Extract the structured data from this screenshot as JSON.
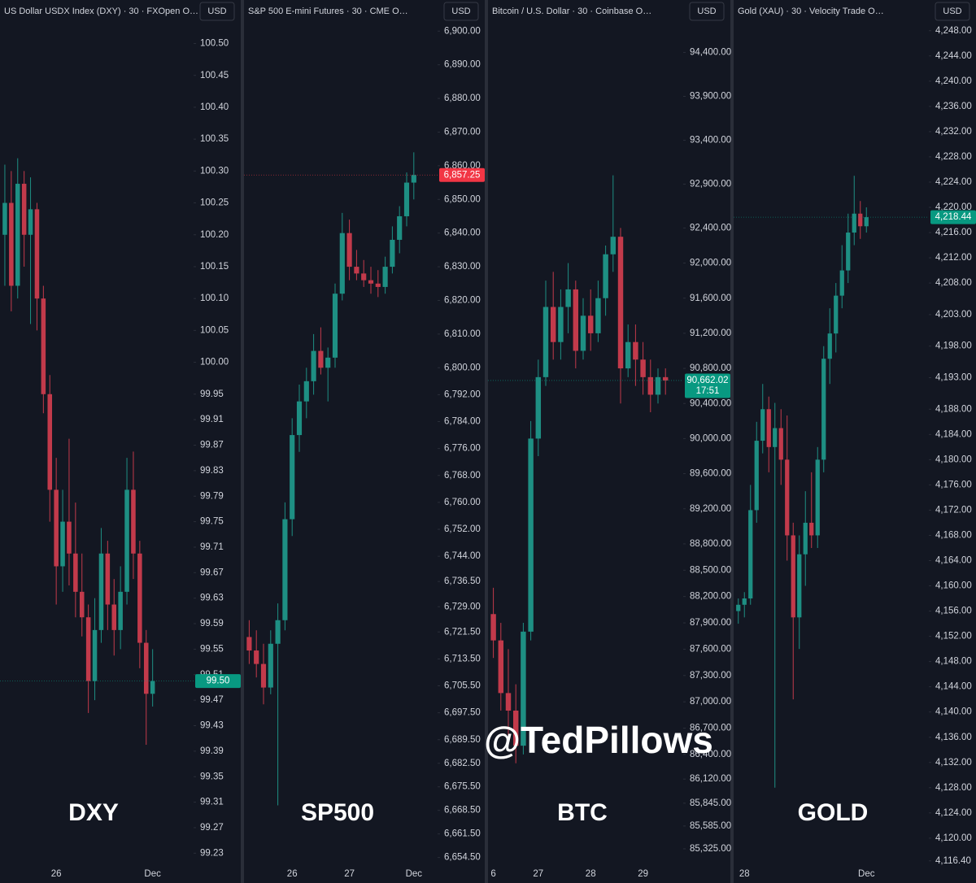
{
  "watermark": "@TedPillows",
  "chart_data": [
    {
      "type": "candlestick",
      "title": "US Dollar USDX Index (DXY) · 30 · FXOpen  O…",
      "currency": "USD",
      "label": "DXY",
      "up_color": "#1e8f83",
      "down_color": "#c23a4b",
      "last_color": "#089981",
      "categories": [
        null,
        null,
        null,
        null,
        null,
        null,
        null,
        null,
        "26",
        null,
        null,
        null,
        null,
        null,
        null,
        null,
        null,
        null,
        null,
        null,
        null,
        null,
        null,
        "Dec"
      ],
      "open": [
        100.2,
        100.25,
        100.12,
        100.28,
        100.2,
        100.24,
        100.1,
        99.95,
        99.8,
        99.68,
        99.75,
        99.7,
        99.64,
        99.6,
        99.5,
        99.58,
        99.7,
        99.62,
        99.58,
        99.64,
        99.8,
        99.7,
        99.56,
        99.48
      ],
      "high": [
        100.31,
        100.3,
        100.32,
        100.3,
        100.29,
        100.25,
        100.12,
        99.98,
        99.85,
        99.8,
        99.88,
        99.78,
        99.7,
        99.62,
        99.63,
        99.74,
        99.72,
        99.66,
        99.68,
        99.85,
        99.86,
        99.72,
        99.58,
        99.55
      ],
      "low": [
        100.12,
        100.08,
        100.1,
        100.15,
        100.06,
        100.05,
        99.92,
        99.75,
        99.62,
        99.64,
        99.65,
        99.6,
        99.57,
        99.45,
        99.47,
        99.56,
        99.58,
        99.54,
        99.55,
        99.62,
        99.66,
        99.52,
        99.4,
        99.46
      ],
      "close": [
        100.25,
        100.12,
        100.28,
        100.2,
        100.24,
        100.1,
        99.95,
        99.8,
        99.68,
        99.75,
        99.7,
        99.64,
        99.6,
        99.5,
        99.58,
        99.7,
        99.62,
        99.58,
        99.64,
        99.8,
        99.7,
        99.56,
        99.48,
        99.5
      ],
      "last_label": "99.50",
      "ylim": [
        99.21,
        100.53
      ],
      "yticks": [
        {
          "value": 100.5,
          "label": "100.50"
        },
        100.45,
        {
          "value": 100.4,
          "label": "100.40"
        },
        100.35,
        {
          "value": 100.3,
          "label": "100.30"
        },
        100.25,
        {
          "value": 100.2,
          "label": "100.20"
        },
        100.15,
        {
          "value": 100.1,
          "label": "100.10"
        },
        100.05,
        {
          "value": 100,
          "label": "100.00"
        },
        99.95,
        99.91,
        99.87,
        99.83,
        99.79,
        99.75,
        99.71,
        99.67,
        99.63,
        99.59,
        99.55,
        99.51,
        99.47,
        99.43,
        99.39,
        99.35,
        99.31,
        99.27,
        99.23
      ]
    },
    {
      "type": "candlestick",
      "title": "S&P 500 E-mini Futures · 30 · CME  O…",
      "currency": "USD",
      "label": "SP500",
      "up_color": "#1e8f83",
      "down_color": "#c23a4b",
      "last_color": "#f23645",
      "categories": [
        null,
        null,
        null,
        null,
        null,
        null,
        "26",
        null,
        null,
        null,
        null,
        null,
        null,
        null,
        "27",
        null,
        null,
        null,
        null,
        null,
        null,
        null,
        null,
        "Dec"
      ],
      "open": [
        6720,
        6716,
        6712,
        6705,
        6718,
        6725,
        6755,
        6780,
        6790,
        6796,
        6805,
        6800,
        6803,
        6822,
        6840,
        6830,
        6828,
        6826,
        6825,
        6824,
        6830,
        6838,
        6845,
        6855
      ],
      "high": [
        6725,
        6722,
        6718,
        6722,
        6730,
        6760,
        6785,
        6795,
        6800,
        6810,
        6812,
        6806,
        6825,
        6846,
        6844,
        6835,
        6832,
        6830,
        6829,
        6833,
        6842,
        6848,
        6858,
        6864
      ],
      "low": [
        6712,
        6708,
        6700,
        6703,
        6670,
        6722,
        6750,
        6775,
        6785,
        6792,
        6798,
        6790,
        6800,
        6820,
        6826,
        6826,
        6824,
        6822,
        6821,
        6822,
        6828,
        6834,
        6842,
        6850
      ],
      "close": [
        6716,
        6712,
        6705,
        6718,
        6725,
        6755,
        6780,
        6790,
        6796,
        6805,
        6800,
        6803,
        6822,
        6840,
        6830,
        6828,
        6826,
        6825,
        6824,
        6830,
        6838,
        6845,
        6855,
        6857.25
      ],
      "last_label": "6,857.25",
      "ylim": [
        6652,
        6902
      ],
      "yticks": [
        {
          "value": 6900,
          "label": "6,900.00"
        },
        {
          "value": 6890,
          "label": "6,890.00"
        },
        {
          "value": 6880,
          "label": "6,880.00"
        },
        {
          "value": 6870,
          "label": "6,870.00"
        },
        {
          "value": 6860,
          "label": "6,860.00"
        },
        {
          "value": 6850,
          "label": "6,850.00"
        },
        {
          "value": 6840,
          "label": "6,840.00"
        },
        {
          "value": 6830,
          "label": "6,830.00"
        },
        {
          "value": 6820,
          "label": "6,820.00"
        },
        {
          "value": 6810,
          "label": "6,810.00"
        },
        {
          "value": 6800,
          "label": "6,800.00"
        },
        {
          "value": 6792,
          "label": "6,792.00"
        },
        {
          "value": 6784,
          "label": "6,784.00"
        },
        {
          "value": 6776,
          "label": "6,776.00"
        },
        {
          "value": 6768,
          "label": "6,768.00"
        },
        {
          "value": 6760,
          "label": "6,760.00"
        },
        {
          "value": 6752,
          "label": "6,752.00"
        },
        {
          "value": 6744,
          "label": "6,744.00"
        },
        {
          "value": 6736.5,
          "label": "6,736.50"
        },
        {
          "value": 6729,
          "label": "6,729.00"
        },
        {
          "value": 6721.5,
          "label": "6,721.50"
        },
        {
          "value": 6713.5,
          "label": "6,713.50"
        },
        {
          "value": 6705.5,
          "label": "6,705.50"
        },
        {
          "value": 6697.5,
          "label": "6,697.50"
        },
        {
          "value": 6689.5,
          "label": "6,689.50"
        },
        {
          "value": 6682.5,
          "label": "6,682.50"
        },
        {
          "value": 6675.5,
          "label": "6,675.50"
        },
        {
          "value": 6668.5,
          "label": "6,668.50"
        },
        {
          "value": 6661.5,
          "label": "6,661.50"
        },
        {
          "value": 6654.5,
          "label": "6,654.50"
        }
      ]
    },
    {
      "type": "candlestick",
      "title": "Bitcoin / U.S. Dollar · 30 · Coinbase  O…",
      "currency": "USD",
      "label": "BTC",
      "up_color": "#1e8f83",
      "down_color": "#c23a4b",
      "last_color": "#089981",
      "categories": [
        "6",
        null,
        null,
        null,
        null,
        null,
        "27",
        null,
        null,
        null,
        null,
        null,
        null,
        "28",
        null,
        null,
        null,
        null,
        null,
        null,
        "29",
        null,
        null,
        null
      ],
      "open": [
        88000,
        87700,
        87100,
        86900,
        86500,
        87800,
        90000,
        90700,
        91500,
        91100,
        91500,
        91700,
        91000,
        91400,
        91200,
        91600,
        92100,
        92300,
        90800,
        91100,
        90900,
        90700,
        90500,
        90700
      ],
      "high": [
        88300,
        87900,
        87600,
        87200,
        87900,
        90200,
        90900,
        91800,
        91900,
        91700,
        92000,
        91800,
        91600,
        91700,
        91800,
        92200,
        93000,
        92400,
        91300,
        91300,
        91100,
        90900,
        90800,
        90800
      ],
      "low": [
        87500,
        86900,
        86600,
        86300,
        86400,
        87700,
        89800,
        90600,
        90900,
        90900,
        91200,
        90800,
        90900,
        91000,
        91100,
        91400,
        91900,
        90400,
        90700,
        90600,
        90500,
        90300,
        90400,
        90500
      ],
      "close": [
        87700,
        87100,
        86900,
        86500,
        87800,
        90000,
        90700,
        91500,
        91100,
        91500,
        91700,
        91000,
        91400,
        91200,
        91600,
        92100,
        92300,
        90800,
        91100,
        90900,
        90700,
        90500,
        90700,
        90662.02
      ],
      "last_label": "90,662.02",
      "countdown": "17:51",
      "ylim": [
        85130,
        94720
      ],
      "yticks": [
        {
          "value": 94400,
          "label": "94,400.00"
        },
        {
          "value": 93900,
          "label": "93,900.00"
        },
        {
          "value": 93400,
          "label": "93,400.00"
        },
        {
          "value": 92900,
          "label": "92,900.00"
        },
        {
          "value": 92400,
          "label": "92,400.00"
        },
        {
          "value": 92000,
          "label": "92,000.00"
        },
        {
          "value": 91600,
          "label": "91,600.00"
        },
        {
          "value": 91200,
          "label": "91,200.00"
        },
        {
          "value": 90800,
          "label": "90,800.00"
        },
        {
          "value": 90400,
          "label": "90,400.00"
        },
        {
          "value": 90000,
          "label": "90,000.00"
        },
        {
          "value": 89600,
          "label": "89,600.00"
        },
        {
          "value": 89200,
          "label": "89,200.00"
        },
        {
          "value": 88800,
          "label": "88,800.00"
        },
        {
          "value": 88500,
          "label": "88,500.00"
        },
        {
          "value": 88200,
          "label": "88,200.00"
        },
        {
          "value": 87900,
          "label": "87,900.00"
        },
        {
          "value": 87600,
          "label": "87,600.00"
        },
        {
          "value": 87300,
          "label": "87,300.00"
        },
        {
          "value": 87000,
          "label": "87,000.00"
        },
        {
          "value": 86700,
          "label": "86,700.00"
        },
        {
          "value": 86400,
          "label": "86,400.00"
        },
        {
          "value": 86120,
          "label": "86,120.00"
        },
        {
          "value": 85845,
          "label": "85,845.00"
        },
        {
          "value": 85585,
          "label": "85,585.00"
        },
        {
          "value": 85325,
          "label": "85,325.00"
        }
      ]
    },
    {
      "type": "candlestick",
      "title": "Gold (XAU) · 30 · Velocity Trade  O…",
      "currency": "USD",
      "label": "GOLD",
      "up_color": "#1e8f83",
      "down_color": "#c23a4b",
      "last_color": "#089981",
      "categories": [
        null,
        "28",
        null,
        null,
        null,
        null,
        null,
        null,
        null,
        null,
        null,
        null,
        null,
        null,
        null,
        null,
        null,
        null,
        null,
        null,
        null,
        "Dec"
      ],
      "open": [
        4156,
        4157,
        4158,
        4172,
        4183,
        4188,
        4182,
        4185,
        4180,
        4168,
        4155,
        4165,
        4170,
        4168,
        4180,
        4196,
        4200,
        4206,
        4210,
        4216,
        4219,
        4217
      ],
      "high": [
        4158,
        4159,
        4176,
        4186,
        4192,
        4190,
        4189,
        4188,
        4187,
        4170,
        4168,
        4175,
        4178,
        4182,
        4198,
        4204,
        4208,
        4214,
        4219,
        4225,
        4221,
        4220
      ],
      "low": [
        4154,
        4155,
        4157,
        4170,
        4181,
        4178,
        4128,
        4176,
        4164,
        4142,
        4150,
        4160,
        4166,
        4166,
        4178,
        4192,
        4197,
        4204,
        4208,
        4214,
        4215,
        4216
      ],
      "close": [
        4157,
        4158,
        4172,
        4183,
        4188,
        4182,
        4185,
        4180,
        4168,
        4155,
        4165,
        4170,
        4168,
        4180,
        4196,
        4200,
        4206,
        4210,
        4216,
        4219,
        4217,
        4218.44
      ],
      "last_label": "4,218.44",
      "ylim": [
        4115.6,
        4249
      ],
      "yticks": [
        {
          "value": 4248,
          "label": "4,248.00"
        },
        {
          "value": 4244,
          "label": "4,244.00"
        },
        {
          "value": 4240,
          "label": "4,240.00"
        },
        {
          "value": 4236,
          "label": "4,236.00"
        },
        {
          "value": 4232,
          "label": "4,232.00"
        },
        {
          "value": 4228,
          "label": "4,228.00"
        },
        {
          "value": 4224,
          "label": "4,224.00"
        },
        {
          "value": 4220,
          "label": "4,220.00"
        },
        {
          "value": 4216,
          "label": "4,216.00"
        },
        {
          "value": 4212,
          "label": "4,212.00"
        },
        {
          "value": 4208,
          "label": "4,208.00"
        },
        {
          "value": 4203,
          "label": "4,203.00"
        },
        {
          "value": 4198,
          "label": "4,198.00"
        },
        {
          "value": 4193,
          "label": "4,193.00"
        },
        {
          "value": 4188,
          "label": "4,188.00"
        },
        {
          "value": 4184,
          "label": "4,184.00"
        },
        {
          "value": 4180,
          "label": "4,180.00"
        },
        {
          "value": 4176,
          "label": "4,176.00"
        },
        {
          "value": 4172,
          "label": "4,172.00"
        },
        {
          "value": 4168,
          "label": "4,168.00"
        },
        {
          "value": 4164,
          "label": "4,164.00"
        },
        {
          "value": 4160,
          "label": "4,160.00"
        },
        {
          "value": 4156,
          "label": "4,156.00"
        },
        {
          "value": 4152,
          "label": "4,152.00"
        },
        {
          "value": 4148,
          "label": "4,148.00"
        },
        {
          "value": 4144,
          "label": "4,144.00"
        },
        {
          "value": 4140,
          "label": "4,140.00"
        },
        {
          "value": 4136,
          "label": "4,136.00"
        },
        {
          "value": 4132,
          "label": "4,132.00"
        },
        {
          "value": 4128,
          "label": "4,128.00"
        },
        {
          "value": 4124,
          "label": "4,124.00"
        },
        {
          "value": 4120,
          "label": "4,120.00"
        },
        {
          "value": 4116.4,
          "label": "4,116.40"
        }
      ]
    }
  ]
}
